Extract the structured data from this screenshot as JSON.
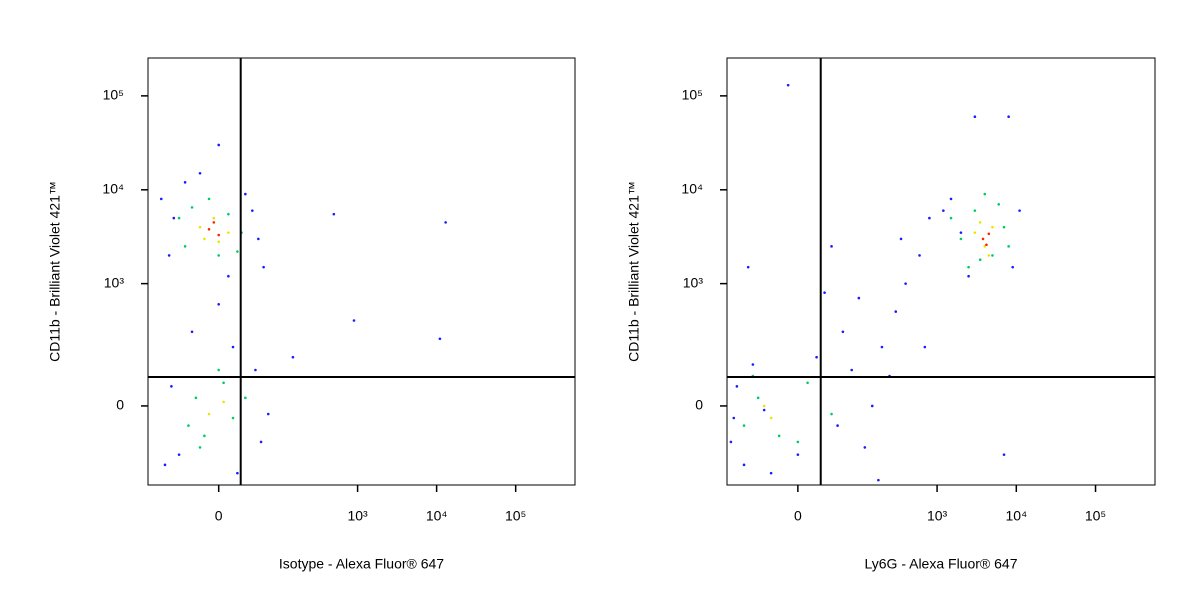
{
  "chart_data": [
    {
      "type": "scatter",
      "xlabel": "Isotype - Alexa Fluor® 647",
      "ylabel": "CD11b - Brilliant Violet 421™",
      "xscale": "biexponential",
      "yscale": "biexponential",
      "xlim": [
        -135,
        563000
      ],
      "ylim": [
        -340,
        253000
      ],
      "xticks": [
        0,
        {
          "value": 1000,
          "label": "10³"
        },
        {
          "value": 10000,
          "label": "10⁴"
        },
        {
          "value": 100000,
          "label": "10⁵"
        }
      ],
      "yticks": [
        0,
        {
          "value": 1000,
          "label": "10³"
        },
        {
          "value": 10000,
          "label": "10⁴"
        },
        {
          "value": 100000,
          "label": "10⁵"
        }
      ],
      "gates": {
        "x": 24,
        "y": 77
      },
      "series": [
        {
          "color": "#1a1aff",
          "x": [
            -90,
            -70,
            -40,
            30,
            50,
            60,
            -60,
            -20,
            10,
            40,
            -80,
            -50,
            20,
            45,
            -30,
            0,
            15,
            -65,
            55,
            500,
            13000,
            900,
            11000,
            150,
            70,
            0
          ],
          "y": [
            8000,
            2000,
            12000,
            9000,
            3000,
            1500,
            5000,
            15000,
            1200,
            6000,
            -200,
            -150,
            -250,
            100,
            300,
            600,
            200,
            50,
            -100,
            5500,
            4500,
            400,
            250,
            150,
            -20,
            30000
          ]
        },
        {
          "color": "#00cc66",
          "x": [
            -50,
            -30,
            -10,
            10,
            25,
            -40,
            0,
            20,
            -35,
            -15,
            5,
            30,
            -20,
            0,
            15,
            -25
          ],
          "y": [
            5000,
            6500,
            8000,
            5500,
            3500,
            2500,
            2000,
            2200,
            -50,
            -80,
            60,
            20,
            -120,
            100,
            -30,
            20
          ]
        },
        {
          "color": "#e6e600",
          "x": [
            -20,
            -5,
            10,
            -15,
            0,
            -10,
            5
          ],
          "y": [
            4000,
            5000,
            3500,
            3000,
            2800,
            -20,
            10
          ]
        },
        {
          "color": "#ff2200",
          "x": [
            -10,
            0,
            -5
          ],
          "y": [
            3800,
            3300,
            4500
          ]
        }
      ]
    },
    {
      "type": "scatter",
      "xlabel": "Ly6G - Alexa Fluor® 647",
      "ylabel": "CD11b - Brilliant Violet 421™",
      "xscale": "biexponential",
      "yscale": "biexponential",
      "xlim": [
        -135,
        563000
      ],
      "ylim": [
        -340,
        253000
      ],
      "xticks": [
        0,
        {
          "value": 1000,
          "label": "10³"
        },
        {
          "value": 10000,
          "label": "10⁴"
        },
        {
          "value": 100000,
          "label": "10⁵"
        }
      ],
      "yticks": [
        0,
        {
          "value": 1000,
          "label": "10³"
        },
        {
          "value": 10000,
          "label": "10⁴"
        },
        {
          "value": 100000,
          "label": "10⁵"
        }
      ],
      "gates": {
        "x": 25,
        "y": 77
      },
      "series": [
        {
          "color": "#1a1aff",
          "x": [
            -120,
            -100,
            -80,
            -60,
            -30,
            0,
            20,
            50,
            80,
            120,
            150,
            60,
            200,
            300,
            400,
            600,
            800,
            100,
            -70,
            -110,
            40,
            250,
            1200,
            1500,
            2000,
            9000,
            11000,
            2500,
            700,
            180,
            -40,
            30,
            350,
            7000,
            3000,
            8000,
            -10
          ],
          "y": [
            -100,
            50,
            -200,
            120,
            -250,
            -150,
            150,
            -50,
            100,
            -120,
            0,
            300,
            200,
            500,
            1000,
            2000,
            5000,
            700,
            1500,
            -30,
            2500,
            80,
            6000,
            8000,
            3500,
            1500,
            6000,
            1200,
            200,
            -300,
            -10,
            800,
            3000,
            -150,
            60000,
            60000,
            130000
          ]
        },
        {
          "color": "#00cc66",
          "x": [
            -80,
            -50,
            -20,
            10,
            40,
            -60,
            0,
            1500,
            2000,
            3000,
            5000,
            7000,
            6000,
            2500,
            4000,
            3500,
            8000
          ],
          "y": [
            -50,
            20,
            -80,
            60,
            -20,
            80,
            -100,
            5000,
            3000,
            6000,
            2000,
            4000,
            7000,
            1500,
            9000,
            1800,
            2500
          ]
        },
        {
          "color": "#e6e600",
          "x": [
            -40,
            -30,
            3000,
            4000,
            5000,
            4500,
            3500
          ],
          "y": [
            0,
            -30,
            3500,
            2500,
            4000,
            2000,
            4500
          ]
        },
        {
          "color": "#ff2200",
          "x": [
            3800,
            4200,
            4500
          ],
          "y": [
            3000,
            2600,
            3400
          ]
        }
      ]
    }
  ]
}
